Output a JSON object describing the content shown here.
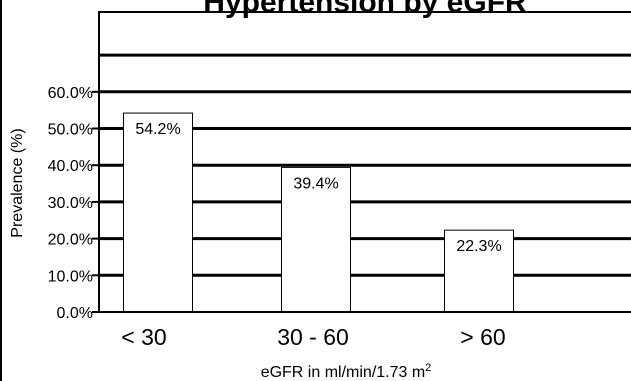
{
  "chart_data": {
    "type": "bar",
    "title": "Hypertension by eGFR",
    "categories": [
      "< 30",
      "30 - 60",
      "> 60"
    ],
    "values": [
      54.2,
      39.4,
      22.3
    ],
    "data_labels": [
      "54.2%",
      "39.4%",
      "22.3%"
    ],
    "ylabel": "Prevalence (%)",
    "xlabel": {
      "text": "eGFR in ml/min/1.73 m",
      "superscript": "2"
    },
    "y_ticks": [
      {
        "value": 0,
        "label": "0.0%"
      },
      {
        "value": 10,
        "label": "10.0%"
      },
      {
        "value": 20,
        "label": "20.0%"
      },
      {
        "value": 30,
        "label": "30.0%"
      },
      {
        "value": 40,
        "label": "40.0%"
      },
      {
        "value": 50,
        "label": "50.0%"
      },
      {
        "value": 60,
        "label": "60.0%"
      }
    ],
    "ylim": [
      0,
      90
    ],
    "grid": true,
    "colors": {
      "bar_fill": "#ffffff",
      "bar_stroke": "#000000",
      "grid": "#000000",
      "text": "#000000"
    }
  }
}
